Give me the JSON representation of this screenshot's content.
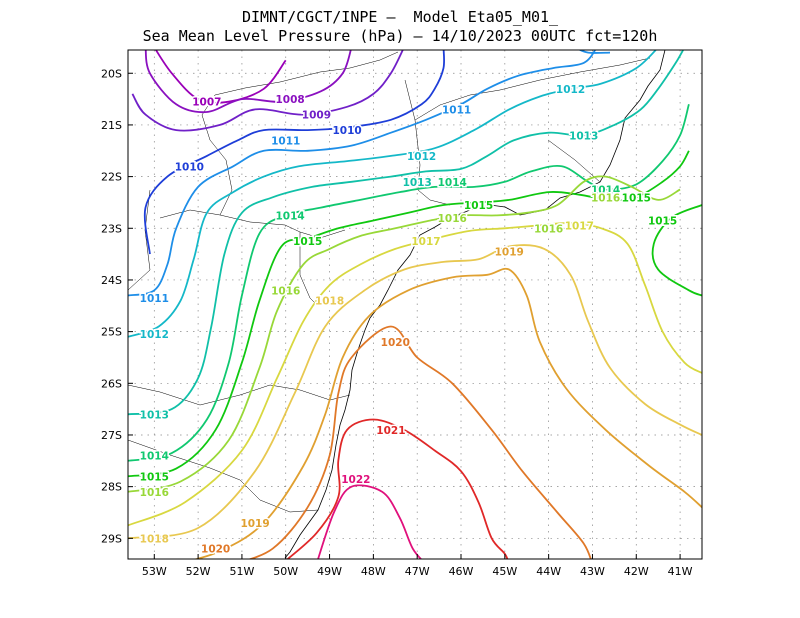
{
  "title": {
    "line1": "DIMNT/CGCT/INPE –  Model Eta05_M01_",
    "line2": "Sea Mean Level Pressure (hPa) – 14/10/2023 00UTC fct=120h"
  },
  "axes": {
    "lon_ticks": [
      "53W",
      "52W",
      "51W",
      "50W",
      "49W",
      "48W",
      "47W",
      "46W",
      "45W",
      "44W",
      "43W",
      "42W",
      "41W"
    ],
    "lat_ticks": [
      "20S",
      "21S",
      "22S",
      "23S",
      "24S",
      "25S",
      "26S",
      "27S",
      "28S",
      "29S"
    ]
  },
  "colors": {
    "1007": "#9a00b8",
    "1008": "#8a10c0",
    "1009": "#7020c8",
    "1010": "#1e3ed8",
    "1011": "#1e8ee8",
    "1012": "#14b8c8",
    "1013": "#10c0a8",
    "1014": "#10c870",
    "1015": "#10c810",
    "1016": "#98d838",
    "1017": "#d8d840",
    "1018": "#e8c850",
    "1019": "#e0a030",
    "1020": "#e07828",
    "1021": "#e02828",
    "1022": "#e0107c",
    "coast": "#000000",
    "grid": "#888888"
  },
  "contour_labels": [
    {
      "text": "1007",
      "level": "1007",
      "lon": -51.8,
      "lat": -20.55
    },
    {
      "text": "1008",
      "level": "1008",
      "lon": -49.9,
      "lat": -20.5
    },
    {
      "text": "1009",
      "level": "1009",
      "lon": -49.3,
      "lat": -20.8
    },
    {
      "text": "1010",
      "level": "1010",
      "lon": -48.6,
      "lat": -21.1
    },
    {
      "text": "1010",
      "level": "1010",
      "lon": -52.2,
      "lat": -21.8
    },
    {
      "text": "1011",
      "level": "1011",
      "lon": -50.0,
      "lat": -21.3
    },
    {
      "text": "1011",
      "level": "1011",
      "lon": -46.1,
      "lat": -20.7
    },
    {
      "text": "1012",
      "level": "1012",
      "lon": -43.5,
      "lat": -20.3
    },
    {
      "text": "1012",
      "level": "1012",
      "lon": -46.9,
      "lat": -21.6
    },
    {
      "text": "1013",
      "level": "1013",
      "lon": -43.2,
      "lat": -21.2
    },
    {
      "text": "1013",
      "level": "1013",
      "lon": -47.0,
      "lat": -22.1
    },
    {
      "text": "1014",
      "level": "1014",
      "lon": -46.2,
      "lat": -22.1
    },
    {
      "text": "1014",
      "level": "1014",
      "lon": -49.9,
      "lat": -22.75
    },
    {
      "text": "1014",
      "level": "1014",
      "lon": -42.7,
      "lat": -22.25
    },
    {
      "text": "1015",
      "level": "1015",
      "lon": -45.6,
      "lat": -22.55
    },
    {
      "text": "1015",
      "level": "1015",
      "lon": -49.5,
      "lat": -23.25
    },
    {
      "text": "1015",
      "level": "1015",
      "lon": -42.0,
      "lat": -22.4
    },
    {
      "text": "1015",
      "level": "1015",
      "lon": -41.4,
      "lat": -22.85
    },
    {
      "text": "1016",
      "level": "1016",
      "lon": -46.2,
      "lat": -22.8
    },
    {
      "text": "1016",
      "level": "1016",
      "lon": -42.7,
      "lat": -22.4
    },
    {
      "text": "1016",
      "level": "1016",
      "lon": -44.0,
      "lat": -23.0
    },
    {
      "text": "1017",
      "level": "1017",
      "lon": -46.8,
      "lat": -23.25
    },
    {
      "text": "1017",
      "level": "1017",
      "lon": -43.3,
      "lat": -22.95
    },
    {
      "text": "1016",
      "level": "1016",
      "lon": -50.0,
      "lat": -24.2
    },
    {
      "text": "1018",
      "level": "1018",
      "lon": -49.0,
      "lat": -24.4
    },
    {
      "text": "1019",
      "level": "1019",
      "lon": -44.9,
      "lat": -23.45
    },
    {
      "text": "1020",
      "level": "1020",
      "lon": -47.5,
      "lat": -25.2
    },
    {
      "text": "1021",
      "level": "1021",
      "lon": -47.6,
      "lat": -26.9
    },
    {
      "text": "1022",
      "level": "1022",
      "lon": -48.4,
      "lat": -27.85
    },
    {
      "text": "1011",
      "level": "1011",
      "lon": -53.0,
      "lat": -24.35
    },
    {
      "text": "1012",
      "level": "1012",
      "lon": -53.0,
      "lat": -25.05
    },
    {
      "text": "1013",
      "level": "1013",
      "lon": -53.0,
      "lat": -26.6
    },
    {
      "text": "1014",
      "level": "1014",
      "lon": -53.0,
      "lat": -27.4
    },
    {
      "text": "1015",
      "level": "1015",
      "lon": -53.0,
      "lat": -27.8
    },
    {
      "text": "1016",
      "level": "1016",
      "lon": -53.0,
      "lat": -28.1
    },
    {
      "text": "1018",
      "level": "1018",
      "lon": -53.0,
      "lat": -29.0
    },
    {
      "text": "1019",
      "level": "1019",
      "lon": -50.7,
      "lat": -28.7
    },
    {
      "text": "1020",
      "level": "1020",
      "lon": -51.6,
      "lat": -29.2
    }
  ],
  "contours": [
    {
      "level": "1007",
      "pts": [
        [
          -53.0,
          -19.5
        ],
        [
          -52.6,
          -20.0
        ],
        [
          -52.0,
          -20.5
        ],
        [
          -51.3,
          -20.55
        ],
        [
          -50.5,
          -20.3
        ],
        [
          -50.0,
          -19.75
        ]
      ]
    },
    {
      "level": "1008",
      "pts": [
        [
          -53.2,
          -19.5
        ],
        [
          -53.1,
          -20.0
        ],
        [
          -52.5,
          -20.6
        ],
        [
          -51.8,
          -20.75
        ],
        [
          -51.0,
          -20.5
        ],
        [
          -50.1,
          -20.55
        ],
        [
          -49.2,
          -20.35
        ],
        [
          -48.7,
          -20.0
        ],
        [
          -48.5,
          -19.5
        ]
      ]
    },
    {
      "level": "1009",
      "pts": [
        [
          -53.5,
          -20.4
        ],
        [
          -53.2,
          -20.8
        ],
        [
          -52.5,
          -21.1
        ],
        [
          -51.5,
          -21.0
        ],
        [
          -50.7,
          -20.7
        ],
        [
          -49.6,
          -20.8
        ],
        [
          -48.6,
          -20.65
        ],
        [
          -48.0,
          -20.4
        ],
        [
          -47.6,
          -20.0
        ],
        [
          -47.3,
          -19.5
        ]
      ]
    },
    {
      "level": "1010",
      "pts": [
        [
          -53.1,
          -23.5
        ],
        [
          -53.2,
          -22.6
        ],
        [
          -52.7,
          -22.0
        ],
        [
          -51.8,
          -21.6
        ],
        [
          -51.1,
          -21.3
        ],
        [
          -50.5,
          -21.1
        ],
        [
          -49.5,
          -21.1
        ],
        [
          -48.6,
          -21.05
        ],
        [
          -47.6,
          -20.9
        ],
        [
          -46.9,
          -20.6
        ],
        [
          -46.6,
          -20.3
        ],
        [
          -46.4,
          -19.9
        ],
        [
          -46.4,
          -19.5
        ]
      ]
    },
    {
      "level": "1011",
      "pts": [
        [
          -53.6,
          -24.3
        ],
        [
          -53.0,
          -24.2
        ],
        [
          -52.7,
          -23.7
        ],
        [
          -52.5,
          -23.0
        ],
        [
          -52.0,
          -22.2
        ],
        [
          -51.2,
          -21.8
        ],
        [
          -50.5,
          -21.5
        ],
        [
          -49.5,
          -21.5
        ],
        [
          -48.5,
          -21.4
        ],
        [
          -47.6,
          -21.15
        ],
        [
          -46.8,
          -20.9
        ],
        [
          -46.0,
          -20.6
        ],
        [
          -45.4,
          -20.3
        ],
        [
          -44.7,
          -20.05
        ],
        [
          -43.9,
          -19.9
        ],
        [
          -43.2,
          -19.8
        ],
        [
          -42.9,
          -19.5
        ]
      ]
    },
    {
      "level": "1011",
      "pts": [
        [
          -43.4,
          -19.5
        ],
        [
          -43.1,
          -19.6
        ],
        [
          -42.6,
          -19.6
        ]
      ]
    },
    {
      "level": "1012",
      "pts": [
        [
          -53.6,
          -25.1
        ],
        [
          -52.9,
          -24.9
        ],
        [
          -52.4,
          -24.4
        ],
        [
          -52.1,
          -23.6
        ],
        [
          -51.8,
          -22.7
        ],
        [
          -51.2,
          -22.3
        ],
        [
          -50.5,
          -22.0
        ],
        [
          -49.7,
          -21.8
        ],
        [
          -48.6,
          -21.7
        ],
        [
          -47.6,
          -21.6
        ],
        [
          -46.6,
          -21.45
        ],
        [
          -45.7,
          -21.1
        ],
        [
          -44.9,
          -20.7
        ],
        [
          -44.2,
          -20.45
        ],
        [
          -43.5,
          -20.3
        ],
        [
          -42.8,
          -20.2
        ],
        [
          -42.0,
          -19.9
        ],
        [
          -41.5,
          -19.5
        ]
      ]
    },
    {
      "level": "1013",
      "pts": [
        [
          -53.6,
          -26.6
        ],
        [
          -52.6,
          -26.5
        ],
        [
          -52.0,
          -25.9
        ],
        [
          -51.7,
          -24.9
        ],
        [
          -51.4,
          -23.5
        ],
        [
          -51.0,
          -22.7
        ],
        [
          -50.3,
          -22.4
        ],
        [
          -49.4,
          -22.2
        ],
        [
          -48.5,
          -22.1
        ],
        [
          -47.6,
          -22.0
        ],
        [
          -46.8,
          -21.9
        ],
        [
          -46.0,
          -21.85
        ],
        [
          -45.4,
          -21.6
        ],
        [
          -44.8,
          -21.3
        ],
        [
          -44.0,
          -21.15
        ],
        [
          -43.2,
          -21.2
        ],
        [
          -42.5,
          -21.0
        ],
        [
          -41.9,
          -20.7
        ],
        [
          -41.5,
          -20.3
        ],
        [
          -41.1,
          -19.8
        ],
        [
          -40.9,
          -19.5
        ]
      ]
    },
    {
      "level": "1014",
      "pts": [
        [
          -53.6,
          -27.5
        ],
        [
          -52.6,
          -27.35
        ],
        [
          -51.8,
          -26.7
        ],
        [
          -51.3,
          -25.6
        ],
        [
          -51.0,
          -24.3
        ],
        [
          -50.6,
          -23.1
        ],
        [
          -50.0,
          -22.75
        ],
        [
          -49.2,
          -22.6
        ],
        [
          -48.3,
          -22.45
        ],
        [
          -47.4,
          -22.3
        ],
        [
          -46.6,
          -22.2
        ],
        [
          -45.7,
          -22.2
        ],
        [
          -45.0,
          -22.1
        ],
        [
          -44.4,
          -21.9
        ],
        [
          -43.7,
          -21.8
        ],
        [
          -43.1,
          -22.1
        ],
        [
          -42.7,
          -22.25
        ],
        [
          -42.0,
          -22.15
        ],
        [
          -41.4,
          -21.7
        ],
        [
          -41.0,
          -21.2
        ],
        [
          -40.8,
          -20.6
        ]
      ]
    },
    {
      "level": "1015",
      "pts": [
        [
          -53.6,
          -27.8
        ],
        [
          -52.5,
          -27.65
        ],
        [
          -51.6,
          -26.9
        ],
        [
          -51.0,
          -25.6
        ],
        [
          -50.6,
          -24.4
        ],
        [
          -50.1,
          -23.35
        ],
        [
          -49.5,
          -23.2
        ],
        [
          -48.8,
          -23.0
        ],
        [
          -48.0,
          -22.85
        ],
        [
          -47.2,
          -22.7
        ],
        [
          -46.4,
          -22.55
        ],
        [
          -45.6,
          -22.5
        ],
        [
          -44.9,
          -22.45
        ],
        [
          -44.0,
          -22.3
        ],
        [
          -43.3,
          -22.35
        ],
        [
          -42.6,
          -22.45
        ],
        [
          -42.0,
          -22.4
        ],
        [
          -41.4,
          -22.1
        ],
        [
          -41.0,
          -21.8
        ],
        [
          -40.8,
          -21.5
        ]
      ]
    },
    {
      "level": "1015",
      "pts": [
        [
          -40.5,
          -22.55
        ],
        [
          -41.2,
          -22.8
        ],
        [
          -41.6,
          -23.3
        ],
        [
          -41.5,
          -23.8
        ],
        [
          -40.8,
          -24.2
        ],
        [
          -40.5,
          -24.3
        ]
      ]
    },
    {
      "level": "1016",
      "pts": [
        [
          -53.6,
          -28.1
        ],
        [
          -52.4,
          -27.9
        ],
        [
          -51.3,
          -27.1
        ],
        [
          -50.6,
          -25.7
        ],
        [
          -50.2,
          -24.6
        ],
        [
          -49.6,
          -23.7
        ],
        [
          -49.0,
          -23.4
        ],
        [
          -48.3,
          -23.15
        ],
        [
          -47.5,
          -23.0
        ],
        [
          -46.7,
          -22.85
        ],
        [
          -46.0,
          -22.75
        ],
        [
          -45.2,
          -22.75
        ],
        [
          -44.5,
          -22.7
        ],
        [
          -43.8,
          -22.55
        ],
        [
          -43.2,
          -22.1
        ],
        [
          -42.7,
          -22.0
        ],
        [
          -42.1,
          -22.2
        ],
        [
          -41.5,
          -22.45
        ],
        [
          -41.0,
          -22.25
        ]
      ]
    },
    {
      "level": "1017",
      "pts": [
        [
          -53.6,
          -28.75
        ],
        [
          -52.3,
          -28.3
        ],
        [
          -51.0,
          -27.3
        ],
        [
          -50.2,
          -25.9
        ],
        [
          -49.6,
          -24.8
        ],
        [
          -49.0,
          -24.1
        ],
        [
          -48.3,
          -23.7
        ],
        [
          -47.5,
          -23.4
        ],
        [
          -46.6,
          -23.2
        ],
        [
          -45.8,
          -23.05
        ],
        [
          -45.0,
          -23.0
        ],
        [
          -44.3,
          -22.95
        ],
        [
          -43.5,
          -22.9
        ],
        [
          -42.8,
          -23.0
        ],
        [
          -42.2,
          -23.3
        ],
        [
          -41.8,
          -24.1
        ],
        [
          -41.4,
          -25.0
        ],
        [
          -40.9,
          -25.6
        ],
        [
          -40.5,
          -25.8
        ]
      ]
    },
    {
      "level": "1018",
      "pts": [
        [
          -53.6,
          -29.0
        ],
        [
          -52.0,
          -28.8
        ],
        [
          -50.7,
          -27.7
        ],
        [
          -49.8,
          -26.2
        ],
        [
          -49.1,
          -24.9
        ],
        [
          -48.2,
          -24.2
        ],
        [
          -47.3,
          -23.8
        ],
        [
          -46.4,
          -23.65
        ],
        [
          -45.6,
          -23.6
        ],
        [
          -44.9,
          -23.35
        ],
        [
          -44.1,
          -23.4
        ],
        [
          -43.5,
          -23.9
        ],
        [
          -43.1,
          -24.8
        ],
        [
          -42.6,
          -25.7
        ],
        [
          -41.8,
          -26.4
        ],
        [
          -41.0,
          -26.8
        ],
        [
          -40.5,
          -27.0
        ]
      ]
    },
    {
      "level": "1019",
      "pts": [
        [
          -52.5,
          -29.5
        ],
        [
          -51.5,
          -29.25
        ],
        [
          -50.5,
          -28.7
        ],
        [
          -49.6,
          -27.6
        ],
        [
          -49.1,
          -26.6
        ],
        [
          -48.7,
          -25.5
        ],
        [
          -48.1,
          -24.7
        ],
        [
          -47.2,
          -24.2
        ],
        [
          -46.2,
          -23.95
        ],
        [
          -45.4,
          -23.9
        ],
        [
          -44.9,
          -23.8
        ],
        [
          -44.5,
          -24.3
        ],
        [
          -44.2,
          -25.2
        ],
        [
          -43.6,
          -26.1
        ],
        [
          -42.7,
          -26.9
        ],
        [
          -41.7,
          -27.6
        ],
        [
          -40.9,
          -28.1
        ],
        [
          -40.5,
          -28.4
        ]
      ]
    },
    {
      "level": "1020",
      "pts": [
        [
          -51.2,
          -29.5
        ],
        [
          -50.3,
          -29.2
        ],
        [
          -49.5,
          -28.4
        ],
        [
          -49.0,
          -27.4
        ],
        [
          -48.8,
          -26.2
        ],
        [
          -48.5,
          -25.5
        ],
        [
          -47.6,
          -24.9
        ],
        [
          -47.0,
          -25.5
        ],
        [
          -46.2,
          -26.0
        ],
        [
          -45.3,
          -26.9
        ],
        [
          -44.6,
          -27.7
        ],
        [
          -43.8,
          -28.5
        ],
        [
          -43.2,
          -29.1
        ],
        [
          -43.0,
          -29.5
        ]
      ]
    },
    {
      "level": "1021",
      "pts": [
        [
          -50.1,
          -29.5
        ],
        [
          -49.3,
          -28.9
        ],
        [
          -48.8,
          -28.2
        ],
        [
          -48.8,
          -27.5
        ],
        [
          -48.6,
          -26.9
        ],
        [
          -48.0,
          -26.7
        ],
        [
          -47.3,
          -26.9
        ],
        [
          -46.6,
          -27.3
        ],
        [
          -46.0,
          -27.7
        ],
        [
          -45.6,
          -28.3
        ],
        [
          -45.3,
          -29.0
        ],
        [
          -45.0,
          -29.3
        ],
        [
          -44.9,
          -29.5
        ]
      ]
    },
    {
      "level": "1022",
      "pts": [
        [
          -49.3,
          -29.5
        ],
        [
          -48.9,
          -28.5
        ],
        [
          -48.5,
          -28.0
        ],
        [
          -47.8,
          -28.1
        ],
        [
          -47.4,
          -28.6
        ],
        [
          -47.1,
          -29.2
        ],
        [
          -46.8,
          -29.5
        ]
      ]
    }
  ]
}
